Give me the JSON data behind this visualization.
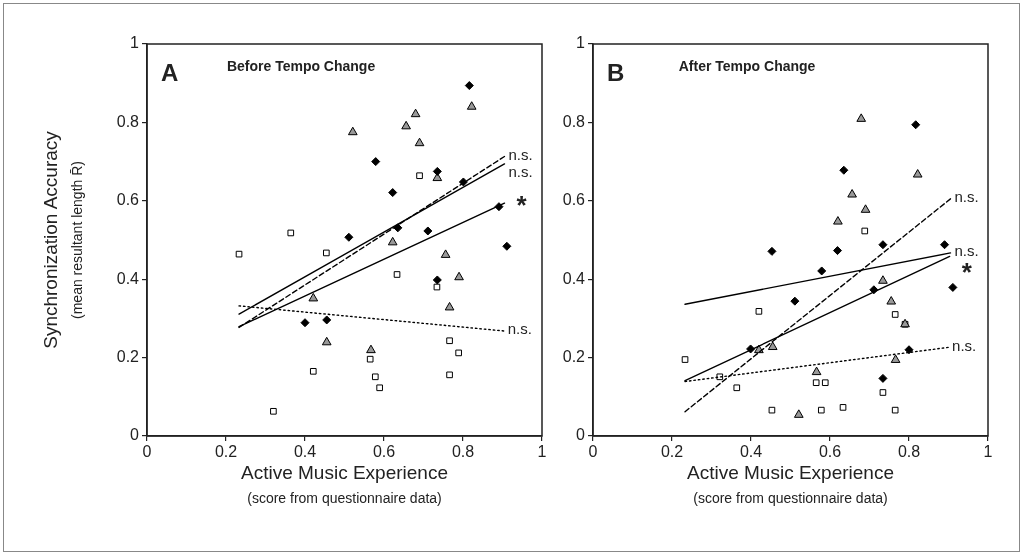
{
  "chart_data": [
    {
      "type": "scatter",
      "title": "Before Tempo Change",
      "xlabel": "Active Music Experience\n(score from questionnaire data)",
      "ylabel": "Synchronization Accuracy\n(mean resultant length R̄)",
      "xlim": [
        0,
        1
      ],
      "ylim": [
        0,
        1
      ],
      "xticks": [
        0,
        0.2,
        0.4,
        0.6,
        0.8,
        1
      ],
      "yticks": [
        0,
        0.2,
        0.4,
        0.6,
        0.8,
        1
      ],
      "annotations": [
        "A",
        {
          "text": "n.s.",
          "x": 0.905,
          "y": 0.713
        },
        {
          "text": "n.s.",
          "x": 0.905,
          "y": 0.694
        },
        {
          "text": "*",
          "x": 0.905,
          "y": 0.594
        },
        {
          "text": "n.s.",
          "x": 0.903,
          "y": 0.268
        }
      ],
      "series": [
        {
          "type": "scatter",
          "marker": "diamond",
          "color": "#000000",
          "x": [
            0.816,
            0.579,
            0.622,
            0.735,
            0.801,
            0.635,
            0.711,
            0.511,
            0.891,
            0.911,
            0.4,
            0.455,
            0.735
          ],
          "values": [
            0.894,
            0.7,
            0.621,
            0.675,
            0.648,
            0.531,
            0.523,
            0.507,
            0.585,
            0.484,
            0.289,
            0.296,
            0.398
          ]
        },
        {
          "type": "scatter",
          "marker": "triangle",
          "color": "#999999",
          "x": [
            0.521,
            0.68,
            0.656,
            0.69,
            0.735,
            0.822,
            0.622,
            0.756,
            0.79,
            0.766,
            0.421,
            0.455,
            0.567
          ],
          "values": [
            0.775,
            0.821,
            0.79,
            0.747,
            0.658,
            0.84,
            0.494,
            0.462,
            0.405,
            0.328,
            0.351,
            0.239,
            0.219
          ]
        },
        {
          "type": "scatter",
          "marker": "square",
          "color": "#ffffff",
          "x": [
            0.233,
            0.364,
            0.454,
            0.69,
            0.633,
            0.734,
            0.766,
            0.789,
            0.766,
            0.565,
            0.578,
            0.589,
            0.421,
            0.32
          ],
          "values": [
            0.464,
            0.518,
            0.467,
            0.664,
            0.412,
            0.38,
            0.243,
            0.212,
            0.156,
            0.196,
            0.151,
            0.123,
            0.165,
            0.063
          ]
        },
        {
          "type": "line",
          "line_style": "dashed",
          "color": "#000000",
          "x": [
            0.233,
            0.905
          ],
          "values": [
            0.277,
            0.713
          ]
        },
        {
          "type": "line",
          "line_style": "solid",
          "color": "#000000",
          "x": [
            0.233,
            0.905
          ],
          "values": [
            0.311,
            0.694
          ]
        },
        {
          "type": "line",
          "line_style": "solid",
          "color": "#000000",
          "x": [
            0.233,
            0.905
          ],
          "values": [
            0.279,
            0.594
          ]
        },
        {
          "type": "line",
          "line_style": "dotted",
          "color": "#000000",
          "x": [
            0.233,
            0.903
          ],
          "values": [
            0.332,
            0.268
          ]
        }
      ]
    },
    {
      "type": "scatter",
      "title": "After Tempo Change",
      "xlabel": "Active Music Experience\n(score from questionnaire data)",
      "xlim": [
        0,
        1
      ],
      "ylim": [
        0,
        1
      ],
      "xticks": [
        0,
        0.2,
        0.4,
        0.6,
        0.8,
        1
      ],
      "yticks": [
        0,
        0.2,
        0.4,
        0.6,
        0.8,
        1
      ],
      "annotations": [
        "B",
        {
          "text": "n.s.",
          "x": 0.905,
          "y": 0.605
        },
        {
          "text": "n.s.",
          "x": 0.905,
          "y": 0.467
        },
        {
          "text": "*",
          "x": 0.903,
          "y": 0.458
        },
        {
          "text": "n.s.",
          "x": 0.899,
          "y": 0.226
        }
      ],
      "series": [
        {
          "type": "scatter",
          "marker": "diamond",
          "color": "#000000",
          "x": [
            0.817,
            0.635,
            0.453,
            0.619,
            0.734,
            0.89,
            0.579,
            0.511,
            0.711,
            0.911,
            0.399,
            0.8,
            0.734
          ],
          "values": [
            0.794,
            0.678,
            0.471,
            0.473,
            0.488,
            0.488,
            0.421,
            0.344,
            0.373,
            0.379,
            0.222,
            0.22,
            0.147
          ]
        },
        {
          "type": "scatter",
          "marker": "triangle",
          "color": "#999999",
          "x": [
            0.679,
            0.822,
            0.656,
            0.69,
            0.62,
            0.734,
            0.755,
            0.79,
            0.455,
            0.42,
            0.766,
            0.566,
            0.521
          ],
          "values": [
            0.809,
            0.667,
            0.616,
            0.577,
            0.547,
            0.396,
            0.343,
            0.285,
            0.227,
            0.219,
            0.194,
            0.163,
            0.054
          ]
        },
        {
          "type": "scatter",
          "marker": "square",
          "color": "#ffffff",
          "x": [
            0.688,
            0.42,
            0.765,
            0.79,
            0.233,
            0.321,
            0.364,
            0.565,
            0.588,
            0.734,
            0.453,
            0.578,
            0.633,
            0.765
          ],
          "values": [
            0.523,
            0.318,
            0.31,
            0.285,
            0.195,
            0.151,
            0.123,
            0.136,
            0.136,
            0.111,
            0.066,
            0.066,
            0.073,
            0.066
          ]
        },
        {
          "type": "line",
          "line_style": "dashed",
          "color": "#000000",
          "x": [
            0.233,
            0.905
          ],
          "values": [
            0.062,
            0.605
          ]
        },
        {
          "type": "line",
          "line_style": "solid",
          "color": "#000000",
          "x": [
            0.233,
            0.905
          ],
          "values": [
            0.336,
            0.467
          ]
        },
        {
          "type": "line",
          "line_style": "solid",
          "color": "#000000",
          "x": [
            0.233,
            0.903
          ],
          "values": [
            0.141,
            0.458
          ]
        },
        {
          "type": "line",
          "line_style": "dotted",
          "color": "#000000",
          "x": [
            0.233,
            0.899
          ],
          "values": [
            0.139,
            0.226
          ]
        }
      ]
    }
  ]
}
